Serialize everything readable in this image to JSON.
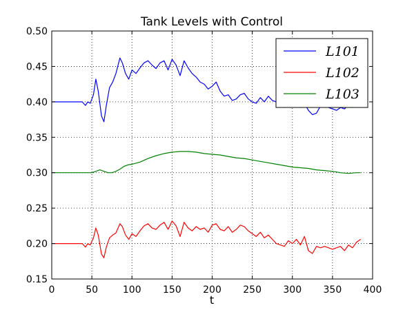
{
  "chart_data": {
    "type": "line",
    "title": "Tank Levels with Control",
    "xlabel": "t",
    "ylabel": "",
    "xlim": [
      0,
      400
    ],
    "ylim": [
      0.15,
      0.5
    ],
    "xticks": [
      0,
      50,
      100,
      150,
      200,
      250,
      300,
      350,
      400
    ],
    "yticks": [
      0.15,
      0.2,
      0.25,
      0.3,
      0.35,
      0.4,
      0.45,
      0.5
    ],
    "xtick_labels": [
      "0",
      "50",
      "100",
      "150",
      "200",
      "250",
      "300",
      "350",
      "400"
    ],
    "ytick_labels": [
      "0.15",
      "0.20",
      "0.25",
      "0.30",
      "0.35",
      "0.40",
      "0.45",
      "0.50"
    ],
    "grid": true,
    "legend_position": "top-right",
    "series": [
      {
        "name": "L101",
        "color": "#0000ff",
        "x": [
          0,
          38,
          42,
          45,
          48,
          52,
          55,
          58,
          62,
          65,
          68,
          72,
          76,
          80,
          85,
          88,
          92,
          96,
          100,
          105,
          110,
          115,
          120,
          125,
          130,
          135,
          140,
          145,
          150,
          155,
          160,
          165,
          170,
          175,
          180,
          185,
          190,
          195,
          200,
          205,
          210,
          215,
          220,
          225,
          230,
          235,
          240,
          245,
          250,
          255,
          260,
          265,
          270,
          275,
          280,
          285,
          290,
          295,
          300,
          305,
          310,
          315,
          320,
          325,
          330,
          335,
          340,
          345,
          350,
          355,
          360,
          365,
          370,
          375,
          380,
          385
        ],
        "y": [
          0.4,
          0.4,
          0.395,
          0.4,
          0.398,
          0.41,
          0.432,
          0.415,
          0.38,
          0.372,
          0.395,
          0.42,
          0.428,
          0.44,
          0.462,
          0.455,
          0.44,
          0.432,
          0.445,
          0.44,
          0.448,
          0.455,
          0.458,
          0.452,
          0.447,
          0.455,
          0.458,
          0.445,
          0.46,
          0.452,
          0.437,
          0.458,
          0.448,
          0.44,
          0.435,
          0.428,
          0.425,
          0.418,
          0.422,
          0.428,
          0.415,
          0.408,
          0.41,
          0.402,
          0.404,
          0.41,
          0.412,
          0.404,
          0.4,
          0.398,
          0.406,
          0.4,
          0.408,
          0.402,
          0.4,
          0.394,
          0.392,
          0.398,
          0.396,
          0.4,
          0.392,
          0.398,
          0.388,
          0.382,
          0.384,
          0.394,
          0.396,
          0.392,
          0.39,
          0.388,
          0.392,
          0.39,
          0.396,
          0.392,
          0.398,
          0.392
        ]
      },
      {
        "name": "L102",
        "color": "#ff0000",
        "x": [
          0,
          38,
          42,
          45,
          48,
          52,
          55,
          58,
          62,
          65,
          68,
          72,
          76,
          80,
          85,
          88,
          92,
          96,
          100,
          105,
          110,
          115,
          120,
          125,
          130,
          135,
          140,
          145,
          150,
          155,
          160,
          165,
          170,
          175,
          180,
          185,
          190,
          195,
          200,
          205,
          210,
          215,
          220,
          225,
          230,
          235,
          240,
          245,
          250,
          255,
          260,
          265,
          270,
          275,
          280,
          285,
          290,
          295,
          300,
          305,
          310,
          315,
          320,
          325,
          330,
          335,
          340,
          345,
          350,
          355,
          360,
          365,
          370,
          375,
          380,
          385
        ],
        "y": [
          0.2,
          0.2,
          0.195,
          0.2,
          0.198,
          0.208,
          0.222,
          0.212,
          0.185,
          0.18,
          0.195,
          0.208,
          0.212,
          0.215,
          0.228,
          0.224,
          0.212,
          0.206,
          0.214,
          0.21,
          0.218,
          0.225,
          0.228,
          0.222,
          0.22,
          0.226,
          0.23,
          0.22,
          0.232,
          0.225,
          0.21,
          0.23,
          0.222,
          0.218,
          0.224,
          0.22,
          0.222,
          0.216,
          0.226,
          0.228,
          0.22,
          0.218,
          0.224,
          0.216,
          0.22,
          0.226,
          0.224,
          0.218,
          0.214,
          0.21,
          0.216,
          0.208,
          0.212,
          0.206,
          0.2,
          0.198,
          0.196,
          0.204,
          0.2,
          0.206,
          0.198,
          0.21,
          0.19,
          0.186,
          0.196,
          0.194,
          0.196,
          0.194,
          0.192,
          0.194,
          0.196,
          0.19,
          0.198,
          0.194,
          0.202,
          0.206
        ]
      },
      {
        "name": "L103",
        "color": "#008000",
        "x": [
          0,
          40,
          50,
          55,
          60,
          65,
          70,
          75,
          80,
          85,
          90,
          95,
          100,
          110,
          120,
          130,
          140,
          150,
          160,
          170,
          180,
          190,
          200,
          210,
          220,
          230,
          240,
          250,
          260,
          270,
          280,
          290,
          300,
          310,
          320,
          330,
          340,
          350,
          360,
          370,
          380,
          385
        ],
        "y": [
          0.3,
          0.3,
          0.3,
          0.302,
          0.304,
          0.302,
          0.3,
          0.3,
          0.302,
          0.305,
          0.309,
          0.311,
          0.312,
          0.315,
          0.32,
          0.324,
          0.327,
          0.329,
          0.33,
          0.33,
          0.329,
          0.327,
          0.326,
          0.325,
          0.323,
          0.321,
          0.32,
          0.318,
          0.316,
          0.314,
          0.312,
          0.31,
          0.308,
          0.307,
          0.306,
          0.304,
          0.303,
          0.302,
          0.3,
          0.299,
          0.3,
          0.3
        ]
      }
    ],
    "legend_labels": [
      "L101",
      "L102",
      "L103"
    ]
  }
}
